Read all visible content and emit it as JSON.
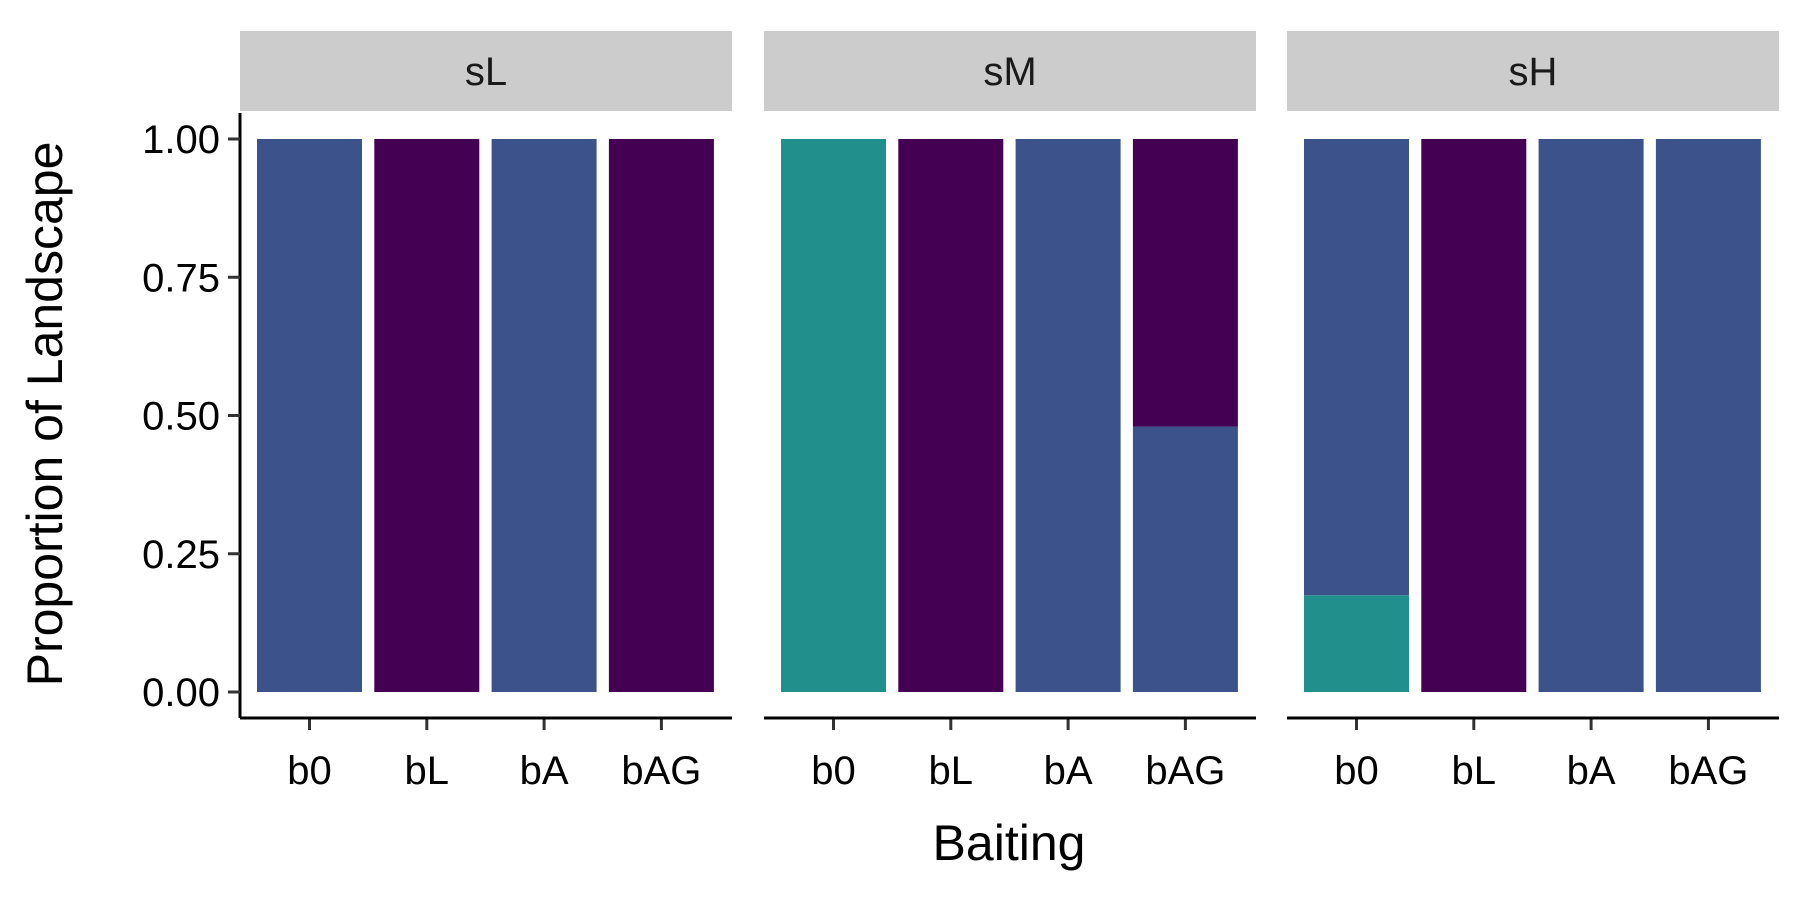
{
  "chart_data": {
    "type": "bar",
    "stacked": true,
    "xlabel": "Baiting",
    "ylabel": "Proportion of Landscape",
    "ylim": [
      0,
      1
    ],
    "yticks": [
      "0.00",
      "0.25",
      "0.50",
      "0.75",
      "1.00"
    ],
    "ytick_values": [
      0,
      0.25,
      0.5,
      0.75,
      1.0
    ],
    "categories": [
      "b0",
      "bL",
      "bA",
      "bAG"
    ],
    "grid": false,
    "legend": "none",
    "colors": {
      "dark_purple": "#440154",
      "blue": "#3b528b",
      "teal": "#21908c"
    },
    "facets": [
      {
        "label": "sL",
        "stacks": [
          [
            {
              "color": "blue",
              "value": 1.0
            }
          ],
          [
            {
              "color": "dark_purple",
              "value": 1.0
            }
          ],
          [
            {
              "color": "blue",
              "value": 1.0
            }
          ],
          [
            {
              "color": "dark_purple",
              "value": 1.0
            }
          ]
        ]
      },
      {
        "label": "sM",
        "stacks": [
          [
            {
              "color": "teal",
              "value": 1.0
            }
          ],
          [
            {
              "color": "dark_purple",
              "value": 1.0
            }
          ],
          [
            {
              "color": "blue",
              "value": 1.0
            }
          ],
          [
            {
              "color": "blue",
              "value": 0.48
            },
            {
              "color": "dark_purple",
              "value": 0.52
            }
          ]
        ]
      },
      {
        "label": "sH",
        "stacks": [
          [
            {
              "color": "teal",
              "value": 0.175
            },
            {
              "color": "blue",
              "value": 0.825
            }
          ],
          [
            {
              "color": "dark_purple",
              "value": 1.0
            }
          ],
          [
            {
              "color": "blue",
              "value": 1.0
            }
          ],
          [
            {
              "color": "blue",
              "value": 1.0
            }
          ]
        ]
      }
    ]
  }
}
